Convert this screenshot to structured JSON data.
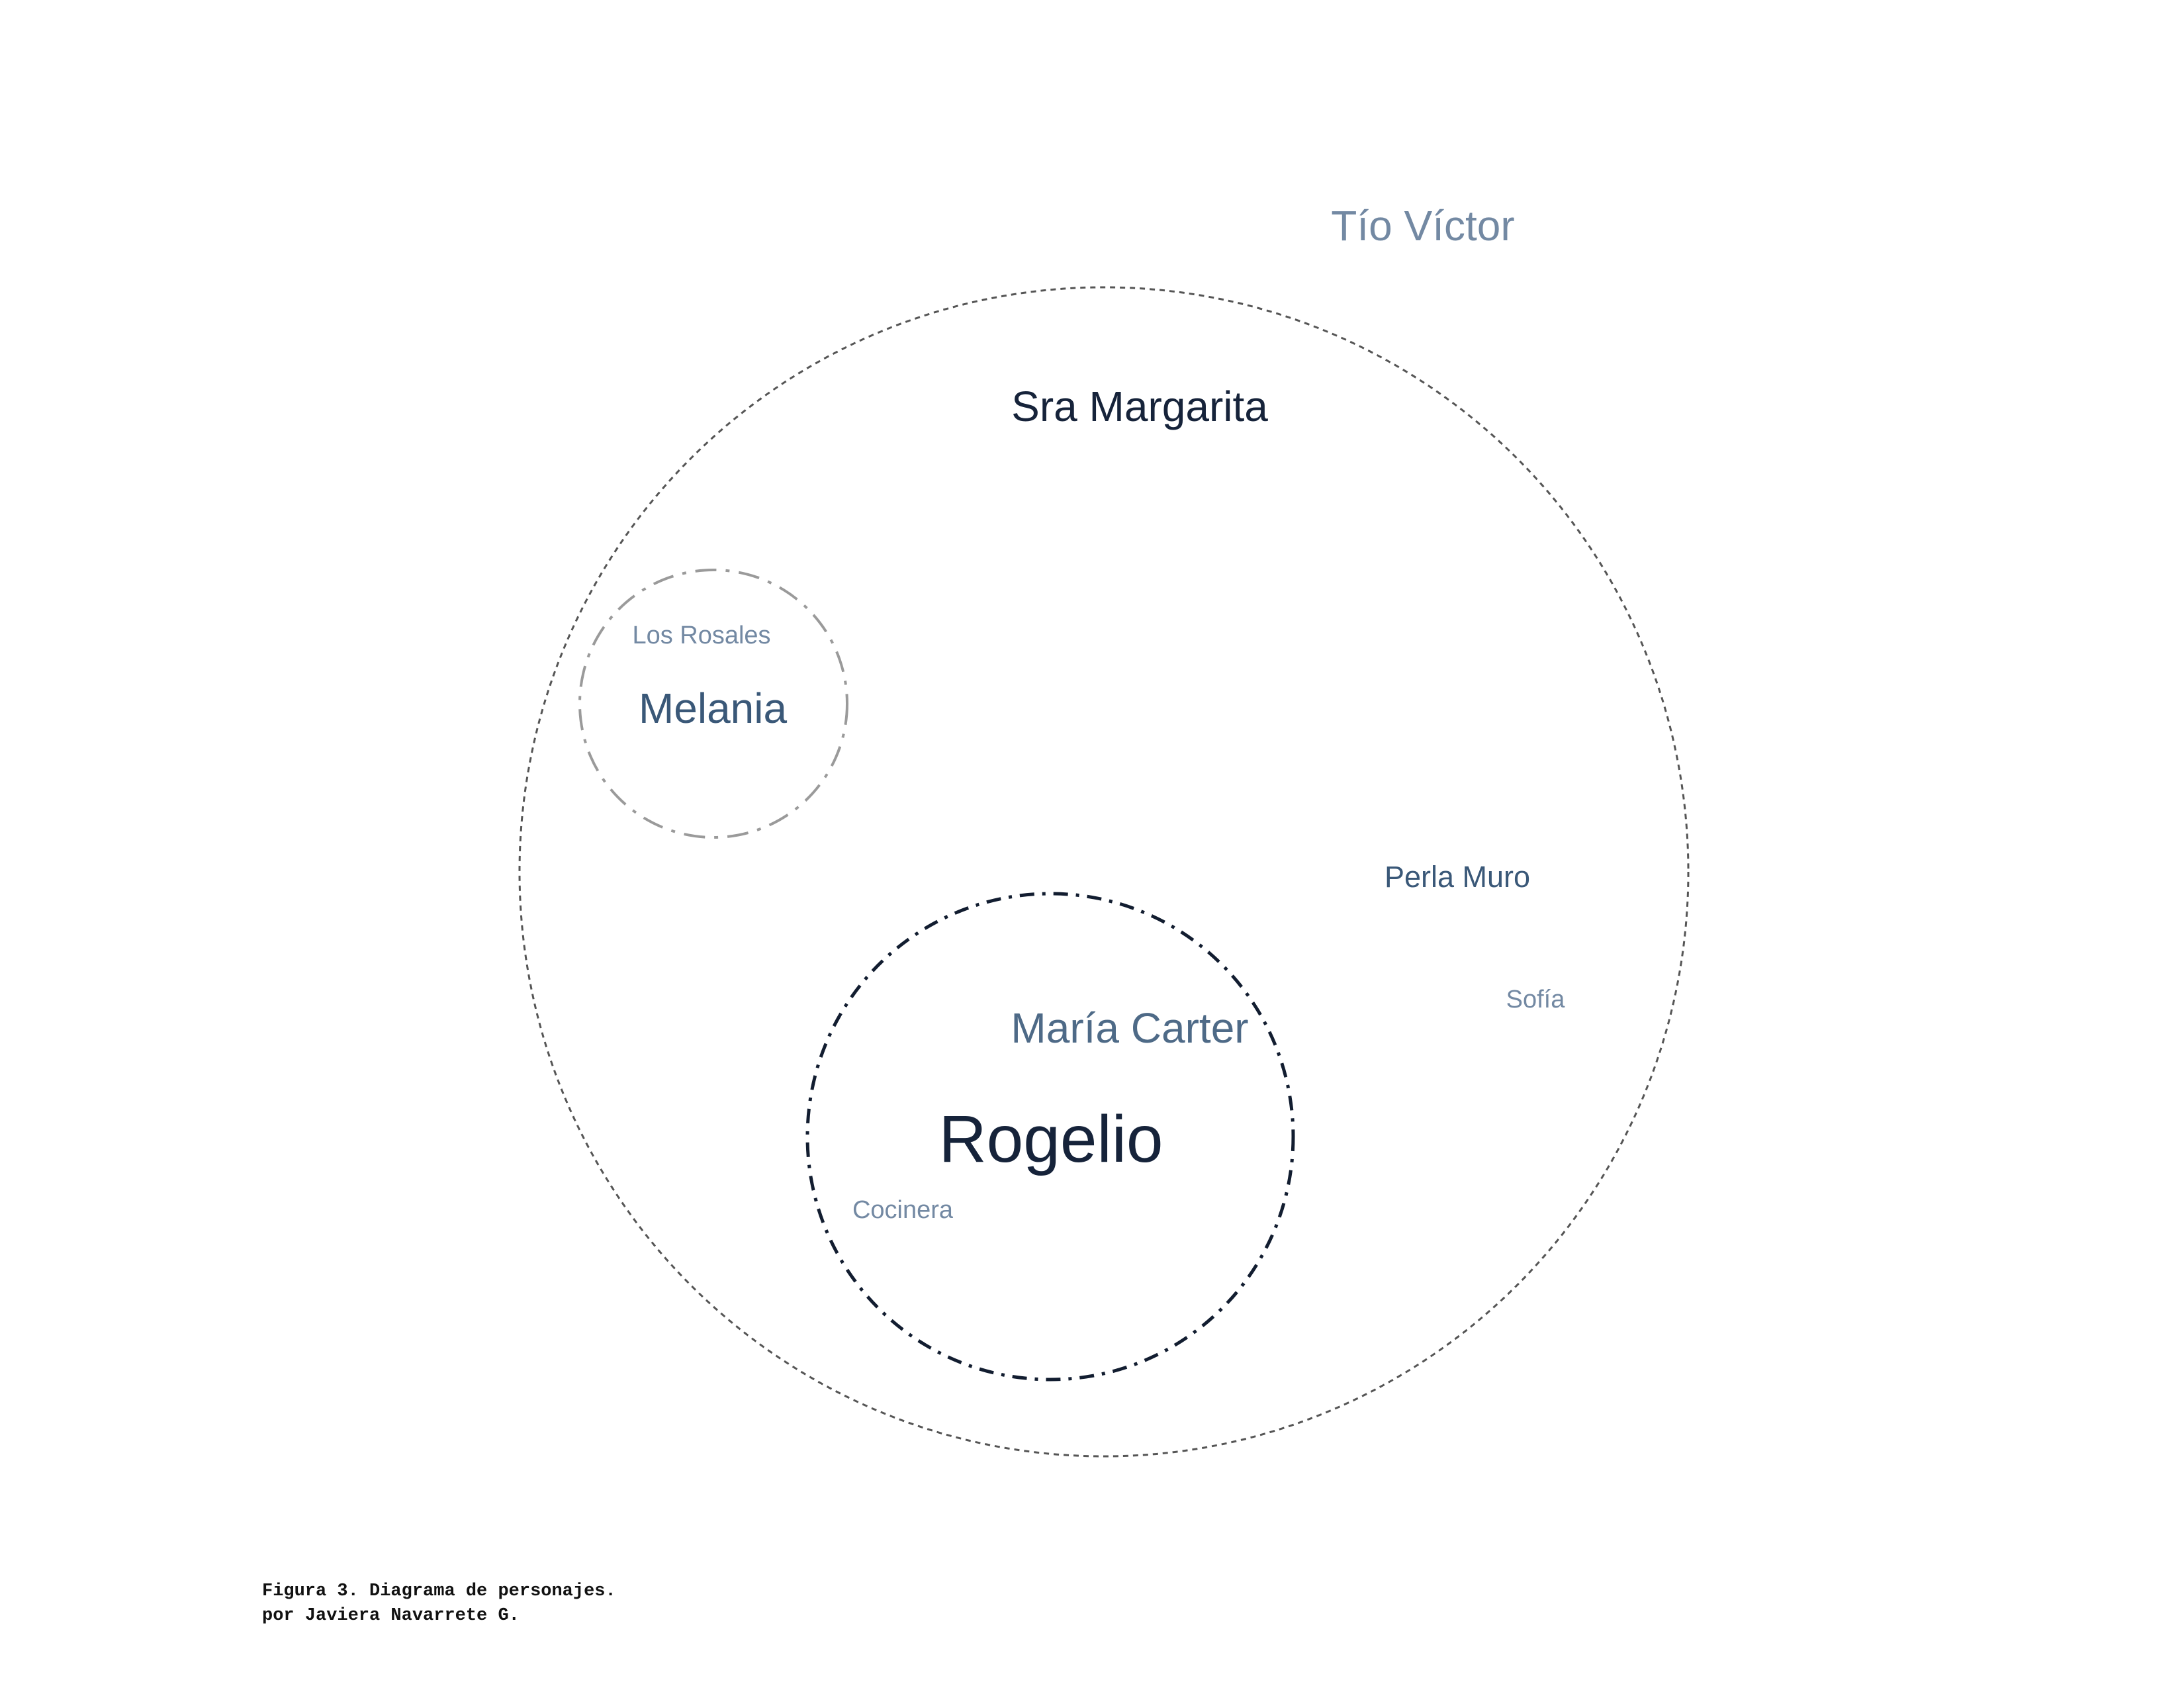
{
  "diagram": {
    "characters": {
      "tio_victor": "Tío Víctor",
      "sra_margarita": "Sra Margarita",
      "los_rosales": "Los Rosales",
      "melania": "Melania",
      "perla_muro": "Perla Muro",
      "sofia": "Sofía",
      "maria_carter": "María Carter",
      "rogelio": "Rogelio",
      "cocinera": "Cocinera"
    },
    "colors": {
      "dark_navy": "#16233a",
      "mid_blue": "#3a5878",
      "slate": "#4e6a87",
      "light_slate": "#7389a3",
      "outer_circle": "#555555",
      "melania_circle": "#9a9a9a",
      "rogelio_circle": "#121d30"
    }
  },
  "caption": {
    "line1": "Figura 3. Diagrama de personajes.",
    "line2": "por Javiera Navarrete G."
  }
}
